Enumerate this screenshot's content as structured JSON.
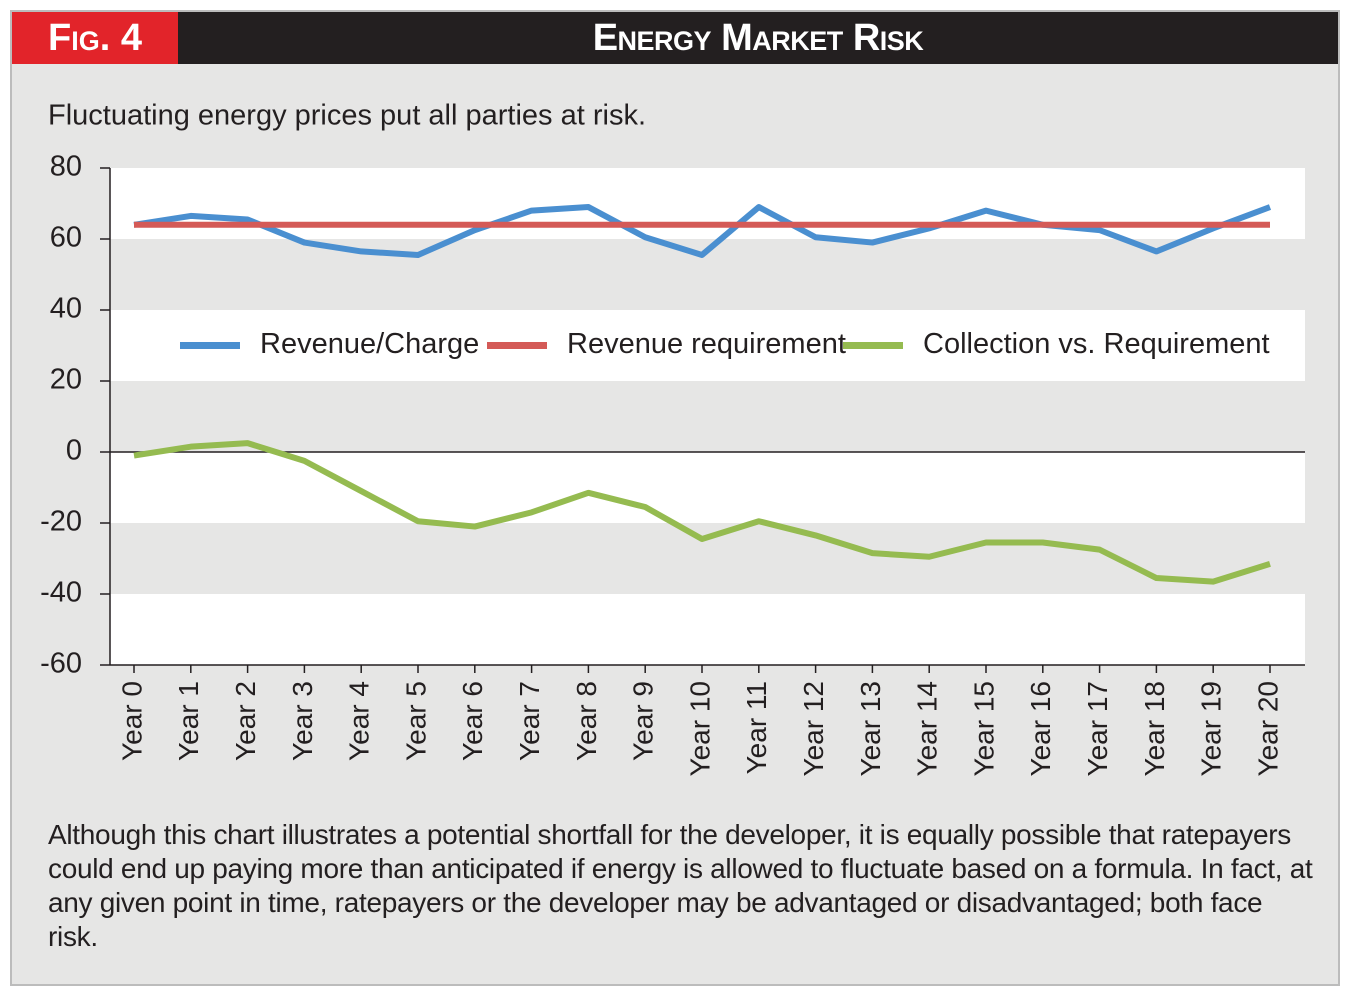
{
  "figure": {
    "label": "Fig. 4",
    "title": "Energy Market Risk",
    "caption": "Although this chart illustrates a potential shortfall for the developer, it is equally possible that ratepayers could end up paying more than anticipated if energy is allowed to fluctuate based on a formula. In fact, at any given point in time, ratepayers or the developer may be advantaged or disadvantaged; both face risk."
  },
  "chart_data": {
    "type": "line",
    "subtitle": "Fluctuating energy prices put all parties at risk.",
    "categories": [
      "Year 0",
      "Year 1",
      "Year 2",
      "Year 3",
      "Year 4",
      "Year 5",
      "Year 6",
      "Year 7",
      "Year 8",
      "Year 9",
      "Year 10",
      "Year 11",
      "Year 12",
      "Year 13",
      "Year 14",
      "Year 15",
      "Year 16",
      "Year 17",
      "Year 18",
      "Year 19",
      "Year 20"
    ],
    "series": [
      {
        "name": "Revenue/Charge",
        "color": "#4a8fd0",
        "values": [
          64,
          66.5,
          65.5,
          59,
          56.5,
          55.5,
          62.5,
          68,
          69,
          60.5,
          55.5,
          69,
          60.5,
          59,
          63,
          68,
          64,
          62.5,
          56.5,
          63,
          69
        ]
      },
      {
        "name": "Revenue requirement",
        "color": "#d45a57",
        "values": [
          64,
          64,
          64,
          64,
          64,
          64,
          64,
          64,
          64,
          64,
          64,
          64,
          64,
          64,
          64,
          64,
          64,
          64,
          64,
          64,
          64
        ]
      },
      {
        "name": "Collection vs. Requirement",
        "color": "#95bb50",
        "values": [
          -1,
          1.5,
          2.5,
          -2.5,
          -11,
          -19.5,
          -21,
          -17,
          -11.5,
          -15.5,
          -24.5,
          -19.5,
          -23.5,
          -28.5,
          -29.5,
          -25.5,
          -25.5,
          -27.5,
          -35.5,
          -36.5,
          -31.5
        ]
      }
    ],
    "ylim": [
      -60,
      80
    ],
    "yticks": [
      -60,
      -40,
      -20,
      0,
      20,
      40,
      60,
      80
    ],
    "legend": "middle"
  }
}
